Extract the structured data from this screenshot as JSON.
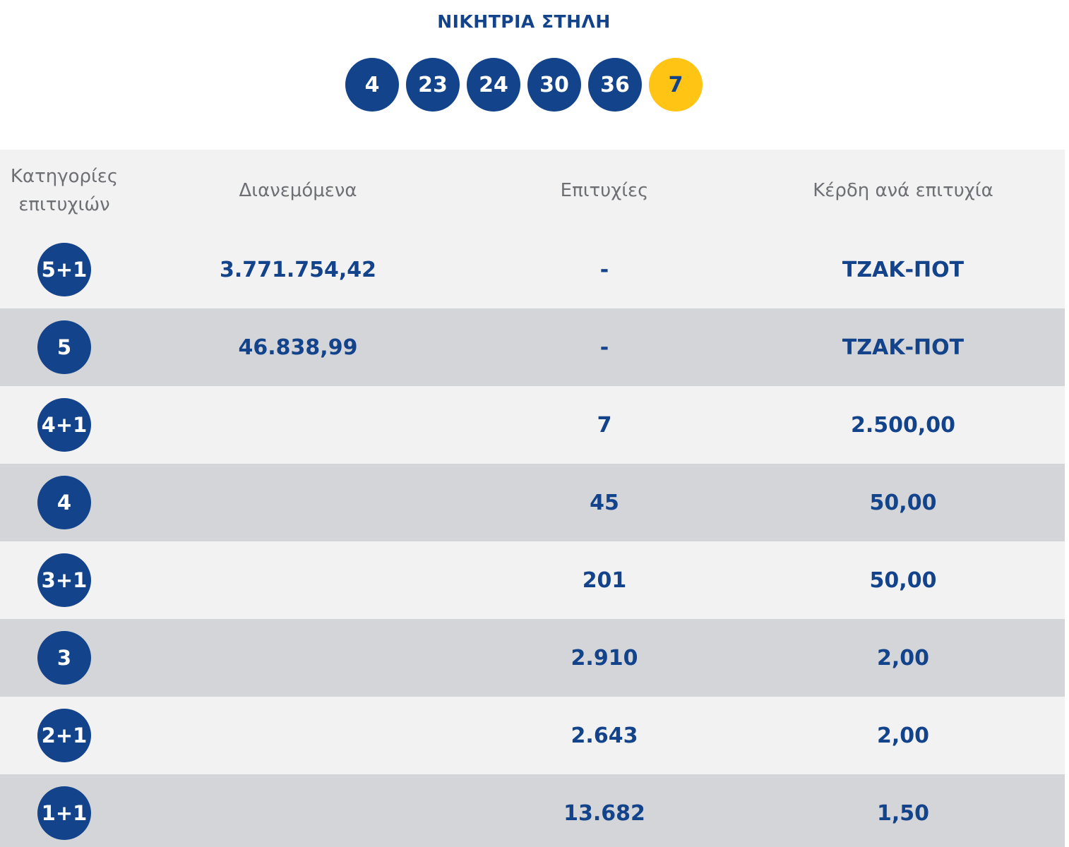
{
  "title": "ΝΙΚΗΤΡΙΑ ΣΤΗΛΗ",
  "winning_numbers": [
    "4",
    "23",
    "24",
    "30",
    "36"
  ],
  "bonus_number": "7",
  "colors": {
    "primary_blue": "#13438a",
    "bonus_yellow": "#ffc414",
    "row_light": "#f2f2f3",
    "row_dark": "#d4d5d8"
  },
  "table": {
    "headers": {
      "category_line1": "Κατηγορίες",
      "category_line2": "επιτυχιών",
      "distributed": "Διανεμόμενα",
      "winners": "Επιτυχίες",
      "prize": "Κέρδη ανά επιτυχία"
    },
    "rows": [
      {
        "category": "5+1",
        "distributed": "3.771.754,42",
        "winners": "-",
        "prize": "ΤΖΑΚ-ΠΟΤ"
      },
      {
        "category": "5",
        "distributed": "46.838,99",
        "winners": "-",
        "prize": "ΤΖΑΚ-ΠΟΤ"
      },
      {
        "category": "4+1",
        "distributed": "",
        "winners": "7",
        "prize": "2.500,00"
      },
      {
        "category": "4",
        "distributed": "",
        "winners": "45",
        "prize": "50,00"
      },
      {
        "category": "3+1",
        "distributed": "",
        "winners": "201",
        "prize": "50,00"
      },
      {
        "category": "3",
        "distributed": "",
        "winners": "2.910",
        "prize": "2,00"
      },
      {
        "category": "2+1",
        "distributed": "",
        "winners": "2.643",
        "prize": "2,00"
      },
      {
        "category": "1+1",
        "distributed": "",
        "winners": "13.682",
        "prize": "1,50"
      }
    ]
  }
}
